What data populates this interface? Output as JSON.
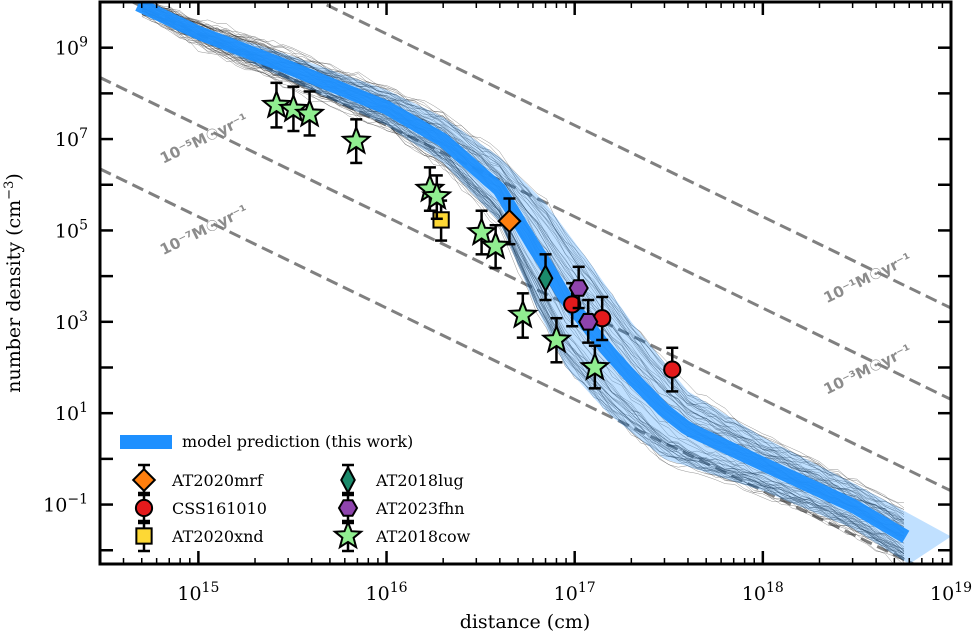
{
  "chart_data": {
    "type": "scatter",
    "xlabel": "distance (cm)",
    "ylabel": "number density (cm",
    "ylabel_sup": "−3",
    "ylabel_end": ")",
    "x_scale": "log",
    "y_scale": "log",
    "xlim": [
      300000000000000.0,
      1e+19
    ],
    "ylim": [
      0.005,
      10000000000.0
    ],
    "x_ticks": [
      {
        "value": 1000000000000000.0,
        "base": "10",
        "exp": "15"
      },
      {
        "value": 1e+16,
        "base": "10",
        "exp": "16"
      },
      {
        "value": 1e+17,
        "base": "10",
        "exp": "17"
      },
      {
        "value": 1e+18,
        "base": "10",
        "exp": "18"
      },
      {
        "value": 1e+19,
        "base": "10",
        "exp": "19"
      }
    ],
    "y_ticks": [
      {
        "value": 0.1,
        "base": "10",
        "exp": "−1"
      },
      {
        "value": 10,
        "base": "10",
        "exp": "1"
      },
      {
        "value": 1000,
        "base": "10",
        "exp": "3"
      },
      {
        "value": 100000,
        "base": "10",
        "exp": "5"
      },
      {
        "value": 10000000,
        "base": "10",
        "exp": "7"
      },
      {
        "value": 1000000000,
        "base": "10",
        "exp": "9"
      }
    ],
    "mass_loss_lines": [
      {
        "label": "10⁻¹M☉yr⁻¹",
        "density_at_1e15": 200000000000.0
      },
      {
        "label": "10⁻³M☉yr⁻¹",
        "density_at_1e15": 2000000000.0
      },
      {
        "label": "10⁻⁵M☉yr⁻¹",
        "density_at_1e15": 20000000.0
      },
      {
        "label": "10⁻⁷M☉yr⁻¹",
        "density_at_1e15": 200000.0
      }
    ],
    "model_band": {
      "name": "model prediction (this work)",
      "color": "#1e90ff",
      "upper": [
        [
          450000000000000.0,
          10000000000.0
        ],
        [
          1000000000000000.0,
          3000000000.0
        ],
        [
          3000000000000000.0,
          700000000.0
        ],
        [
          1e+16,
          120000000.0
        ],
        [
          2e+16,
          30000000.0
        ],
        [
          4e+16,
          4000000.0
        ],
        [
          7e+16,
          400000.0
        ],
        [
          1.2e+17,
          20000.0
        ],
        [
          2e+17,
          1000.0
        ],
        [
          4e+17,
          30
        ],
        [
          1e+18,
          3
        ],
        [
          3e+18,
          0.3
        ],
        [
          1e+19,
          0.02
        ]
      ],
      "lower": [
        [
          450000000000000.0,
          10000000000.0
        ],
        [
          1000000000000000.0,
          1500000000.0
        ],
        [
          3000000000000000.0,
          200000000.0
        ],
        [
          1e+16,
          20000000.0
        ],
        [
          2e+16,
          3000000.0
        ],
        [
          4e+16,
          150000.0
        ],
        [
          6e+16,
          3000.0
        ],
        [
          9e+16,
          100
        ],
        [
          1.5e+17,
          10
        ],
        [
          3e+17,
          1
        ],
        [
          1e+18,
          0.2
        ],
        [
          3e+18,
          0.03
        ],
        [
          6e+18,
          0.005
        ]
      ]
    },
    "series": [
      {
        "name": "AT2020mrf",
        "marker": "diamond",
        "color": "#ff7f0e",
        "points": [
          {
            "x": 4.5e+16,
            "y": 160000.0,
            "ylo": 50000.0,
            "yhi": 500000.0
          }
        ]
      },
      {
        "name": "CSS161010",
        "marker": "circle",
        "color": "#e31a1c",
        "points": [
          {
            "x": 9.7e+16,
            "y": 2400.0,
            "ylo": 800.0,
            "yhi": 7000.0
          },
          {
            "x": 1.4e+17,
            "y": 1200.0,
            "ylo": 400.0,
            "yhi": 3500.0
          },
          {
            "x": 3.3e+17,
            "y": 90,
            "ylo": 30,
            "yhi": 270
          }
        ]
      },
      {
        "name": "AT2020xnd",
        "marker": "square",
        "color": "#fdd835",
        "points": [
          {
            "x": 1.95e+16,
            "y": 170000.0,
            "ylo": 60000.0,
            "yhi": 450000.0
          }
        ]
      },
      {
        "name": "AT2018lug",
        "marker": "thin-diamond",
        "color": "#1b8a6b",
        "points": [
          {
            "x": 7e+16,
            "y": 9000.0,
            "ylo": 3000.0,
            "yhi": 30000.0
          }
        ]
      },
      {
        "name": "AT2023fhn",
        "marker": "hexagon",
        "color": "#8e44ad",
        "points": [
          {
            "x": 1.05e+17,
            "y": 5500.0,
            "ylo": 2000.0,
            "yhi": 16000.0
          },
          {
            "x": 1.18e+17,
            "y": 1000.0,
            "ylo": 350.0,
            "yhi": 3000.0
          }
        ]
      },
      {
        "name": "AT2018cow",
        "marker": "star",
        "color": "#90ee90",
        "points": [
          {
            "x": 2600000000000000.0,
            "y": 55000000.0,
            "ylo": 18000000.0,
            "yhi": 170000000.0
          },
          {
            "x": 3200000000000000.0,
            "y": 45000000.0,
            "ylo": 15000000.0,
            "yhi": 140000000.0
          },
          {
            "x": 3900000000000000.0,
            "y": 35000000.0,
            "ylo": 12000000.0,
            "yhi": 110000000.0
          },
          {
            "x": 6900000000000000.0,
            "y": 9000000.0,
            "ylo": 3000000.0,
            "yhi": 27000000.0
          },
          {
            "x": 1.7e+16,
            "y": 800000.0,
            "ylo": 270000.0,
            "yhi": 2400000.0
          },
          {
            "x": 1.85e+16,
            "y": 550000.0,
            "ylo": 180000.0,
            "yhi": 1600000.0
          },
          {
            "x": 3.2e+16,
            "y": 90000.0,
            "ylo": 30000.0,
            "yhi": 270000.0
          },
          {
            "x": 3.8e+16,
            "y": 45000.0,
            "ylo": 15000.0,
            "yhi": 130000.0
          },
          {
            "x": 5.3e+16,
            "y": 1400.0,
            "ylo": 450.0,
            "yhi": 4200.0
          },
          {
            "x": 8e+16,
            "y": 400.0,
            "ylo": 130.0,
            "yhi": 1200.0
          },
          {
            "x": 1.28e+17,
            "y": 100,
            "ylo": 35,
            "yhi": 300
          }
        ]
      }
    ],
    "legend": {
      "placement": "lower-left",
      "band_entry": "model prediction (this work)",
      "columns": 2,
      "entries": [
        "AT2020mrf",
        "CSS161010",
        "AT2020xnd",
        "AT2018lug",
        "AT2023fhn",
        "AT2018cow"
      ]
    },
    "grid": false
  }
}
